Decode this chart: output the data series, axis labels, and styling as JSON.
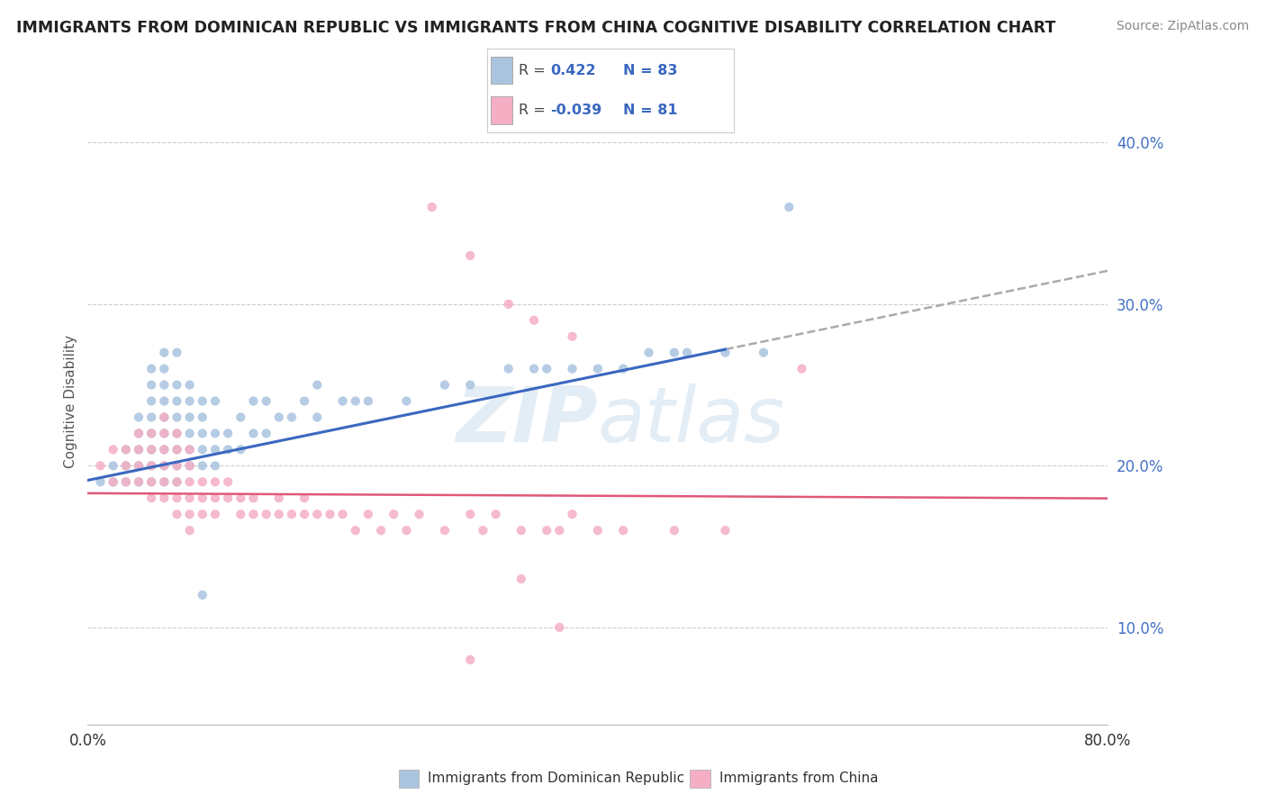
{
  "title": "IMMIGRANTS FROM DOMINICAN REPUBLIC VS IMMIGRANTS FROM CHINA COGNITIVE DISABILITY CORRELATION CHART",
  "source": "Source: ZipAtlas.com",
  "ylabel": "Cognitive Disability",
  "yticks": [
    0.1,
    0.2,
    0.3,
    0.4
  ],
  "ytick_labels": [
    "10.0%",
    "20.0%",
    "30.0%",
    "40.0%"
  ],
  "xlim": [
    0.0,
    0.8
  ],
  "ylim": [
    0.04,
    0.44
  ],
  "legend_label1": "Immigrants from Dominican Republic",
  "legend_label2": "Immigrants from China",
  "color_blue": "#aac4e0",
  "color_pink": "#f4afc4",
  "line_blue": "#3a68c0",
  "line_pink": "#e05878",
  "watermark": "ZIPatlas",
  "blue_x": [
    0.01,
    0.02,
    0.02,
    0.03,
    0.03,
    0.03,
    0.04,
    0.04,
    0.04,
    0.04,
    0.04,
    0.05,
    0.05,
    0.05,
    0.05,
    0.05,
    0.05,
    0.05,
    0.05,
    0.06,
    0.06,
    0.06,
    0.06,
    0.06,
    0.06,
    0.06,
    0.06,
    0.06,
    0.07,
    0.07,
    0.07,
    0.07,
    0.07,
    0.07,
    0.07,
    0.07,
    0.08,
    0.08,
    0.08,
    0.08,
    0.08,
    0.08,
    0.09,
    0.09,
    0.09,
    0.09,
    0.09,
    0.1,
    0.1,
    0.1,
    0.1,
    0.11,
    0.11,
    0.12,
    0.12,
    0.13,
    0.13,
    0.14,
    0.14,
    0.15,
    0.16,
    0.17,
    0.18,
    0.18,
    0.2,
    0.21,
    0.22,
    0.25,
    0.28,
    0.3,
    0.33,
    0.35,
    0.36,
    0.38,
    0.4,
    0.42,
    0.44,
    0.46,
    0.47,
    0.5,
    0.53,
    0.09,
    0.55
  ],
  "blue_y": [
    0.19,
    0.19,
    0.2,
    0.19,
    0.2,
    0.21,
    0.19,
    0.2,
    0.21,
    0.22,
    0.23,
    0.19,
    0.2,
    0.21,
    0.22,
    0.23,
    0.24,
    0.25,
    0.26,
    0.19,
    0.2,
    0.21,
    0.22,
    0.23,
    0.24,
    0.25,
    0.26,
    0.27,
    0.19,
    0.2,
    0.21,
    0.22,
    0.23,
    0.24,
    0.25,
    0.27,
    0.2,
    0.21,
    0.22,
    0.23,
    0.24,
    0.25,
    0.2,
    0.21,
    0.22,
    0.23,
    0.24,
    0.2,
    0.21,
    0.22,
    0.24,
    0.21,
    0.22,
    0.21,
    0.23,
    0.22,
    0.24,
    0.22,
    0.24,
    0.23,
    0.23,
    0.24,
    0.23,
    0.25,
    0.24,
    0.24,
    0.24,
    0.24,
    0.25,
    0.25,
    0.26,
    0.26,
    0.26,
    0.26,
    0.26,
    0.26,
    0.27,
    0.27,
    0.27,
    0.27,
    0.27,
    0.12,
    0.36
  ],
  "pink_x": [
    0.01,
    0.02,
    0.02,
    0.03,
    0.03,
    0.03,
    0.04,
    0.04,
    0.04,
    0.04,
    0.05,
    0.05,
    0.05,
    0.05,
    0.05,
    0.06,
    0.06,
    0.06,
    0.06,
    0.06,
    0.06,
    0.07,
    0.07,
    0.07,
    0.07,
    0.07,
    0.07,
    0.08,
    0.08,
    0.08,
    0.08,
    0.08,
    0.08,
    0.09,
    0.09,
    0.09,
    0.1,
    0.1,
    0.1,
    0.11,
    0.11,
    0.12,
    0.12,
    0.13,
    0.13,
    0.14,
    0.15,
    0.15,
    0.16,
    0.17,
    0.17,
    0.18,
    0.19,
    0.2,
    0.21,
    0.22,
    0.23,
    0.24,
    0.25,
    0.26,
    0.28,
    0.3,
    0.31,
    0.32,
    0.34,
    0.36,
    0.37,
    0.38,
    0.4,
    0.42,
    0.46,
    0.5,
    0.27,
    0.3,
    0.33,
    0.35,
    0.38,
    0.34,
    0.37,
    0.3,
    0.56
  ],
  "pink_y": [
    0.2,
    0.19,
    0.21,
    0.19,
    0.2,
    0.21,
    0.19,
    0.2,
    0.21,
    0.22,
    0.19,
    0.2,
    0.21,
    0.22,
    0.18,
    0.18,
    0.19,
    0.2,
    0.21,
    0.22,
    0.23,
    0.18,
    0.19,
    0.2,
    0.21,
    0.22,
    0.17,
    0.18,
    0.19,
    0.2,
    0.21,
    0.17,
    0.16,
    0.18,
    0.19,
    0.17,
    0.18,
    0.19,
    0.17,
    0.18,
    0.19,
    0.17,
    0.18,
    0.17,
    0.18,
    0.17,
    0.17,
    0.18,
    0.17,
    0.17,
    0.18,
    0.17,
    0.17,
    0.17,
    0.16,
    0.17,
    0.16,
    0.17,
    0.16,
    0.17,
    0.16,
    0.17,
    0.16,
    0.17,
    0.16,
    0.16,
    0.16,
    0.17,
    0.16,
    0.16,
    0.16,
    0.16,
    0.36,
    0.33,
    0.3,
    0.29,
    0.28,
    0.13,
    0.1,
    0.08,
    0.26
  ]
}
